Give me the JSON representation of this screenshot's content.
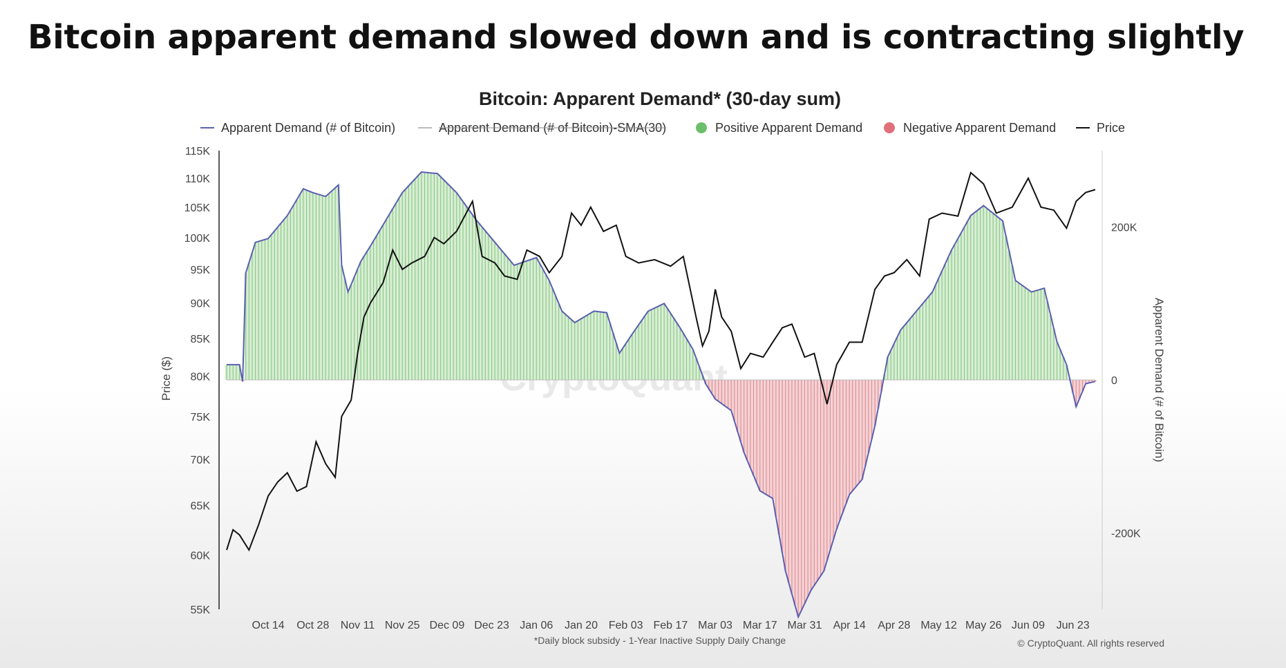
{
  "headline": "Bitcoin apparent demand slowed down and is contracting slightly",
  "chart_data": {
    "type": "line",
    "title": "Bitcoin: Apparent Demand* (30-day sum)",
    "ylabel_left": "Price ($)",
    "ylabel_right": "Apparent Demand (# of Bitcoin)",
    "footnote": "*Daily block subsidy - 1-Year Inactive Supply Daily Change",
    "copyright": "© CryptoQuant. All rights reserved",
    "watermark": "CryptoQuant",
    "legend": [
      {
        "label": "Apparent Demand (# of Bitcoin)",
        "kind": "line",
        "color": "#5a5fb0",
        "struck": false
      },
      {
        "label": "Apparent Demand (# of Bitcoin)-SMA(30)",
        "kind": "line",
        "color": "#bbbbbb",
        "struck": true
      },
      {
        "label": "Positive Apparent Demand",
        "kind": "dot",
        "color": "#6cbf6a",
        "struck": false
      },
      {
        "label": "Negative Apparent Demand",
        "kind": "dot",
        "color": "#e0707a",
        "struck": false
      },
      {
        "label": "Price",
        "kind": "line",
        "color": "#111111",
        "struck": false
      }
    ],
    "left_axis": {
      "min": 55000,
      "max": 115000,
      "scale": "log",
      "ticks": [
        55000,
        60000,
        65000,
        70000,
        75000,
        80000,
        85000,
        90000,
        95000,
        100000,
        105000,
        110000,
        115000
      ],
      "tick_labels": [
        "55K",
        "60K",
        "65K",
        "70K",
        "75K",
        "80K",
        "85K",
        "90K",
        "95K",
        "100K",
        "105K",
        "110K",
        "115K"
      ]
    },
    "right_axis": {
      "min": -300000,
      "max": 300000,
      "ticks": [
        200000,
        0,
        -200000
      ],
      "tick_labels": [
        "200K",
        "0",
        "-200K"
      ]
    },
    "x_axis": {
      "start": "2024-10-01",
      "end": "2025-06-30",
      "ticks": [
        "2024-10-14",
        "2024-10-28",
        "2024-11-11",
        "2024-11-25",
        "2024-12-09",
        "2024-12-23",
        "2025-01-06",
        "2025-01-20",
        "2025-02-03",
        "2025-02-17",
        "2025-03-03",
        "2025-03-17",
        "2025-03-31",
        "2025-04-14",
        "2025-04-28",
        "2025-05-12",
        "2025-05-26",
        "2025-06-09",
        "2025-06-23"
      ],
      "tick_labels": [
        "Oct 14",
        "Oct 28",
        "Nov 11",
        "Nov 25",
        "Dec 09",
        "Dec 23",
        "Jan 06",
        "Jan 20",
        "Feb 03",
        "Feb 17",
        "Mar 03",
        "Mar 17",
        "Mar 31",
        "Apr 14",
        "Apr 28",
        "May 12",
        "May 26",
        "Jun 09",
        "Jun 23"
      ]
    },
    "series": [
      {
        "name": "Apparent Demand (# of Bitcoin)",
        "color": "#5a5fb0",
        "points": [
          [
            "2024-10-01",
            20000
          ],
          [
            "2024-10-05",
            20000
          ],
          [
            "2024-10-06",
            -2000
          ],
          [
            "2024-10-07",
            140000
          ],
          [
            "2024-10-10",
            180000
          ],
          [
            "2024-10-14",
            185000
          ],
          [
            "2024-10-20",
            215000
          ],
          [
            "2024-10-25",
            250000
          ],
          [
            "2024-10-28",
            245000
          ],
          [
            "2024-11-01",
            240000
          ],
          [
            "2024-11-05",
            255000
          ],
          [
            "2024-11-06",
            150000
          ],
          [
            "2024-11-08",
            115000
          ],
          [
            "2024-11-12",
            155000
          ],
          [
            "2024-11-15",
            175000
          ],
          [
            "2024-11-20",
            210000
          ],
          [
            "2024-11-25",
            245000
          ],
          [
            "2024-12-01",
            272000
          ],
          [
            "2024-12-06",
            270000
          ],
          [
            "2024-12-12",
            245000
          ],
          [
            "2024-12-18",
            210000
          ],
          [
            "2024-12-24",
            180000
          ],
          [
            "2024-12-30",
            150000
          ],
          [
            "2025-01-06",
            160000
          ],
          [
            "2025-01-10",
            130000
          ],
          [
            "2025-01-14",
            90000
          ],
          [
            "2025-01-18",
            75000
          ],
          [
            "2025-01-24",
            90000
          ],
          [
            "2025-01-28",
            88000
          ],
          [
            "2025-02-01",
            35000
          ],
          [
            "2025-02-05",
            60000
          ],
          [
            "2025-02-10",
            90000
          ],
          [
            "2025-02-15",
            100000
          ],
          [
            "2025-02-20",
            68000
          ],
          [
            "2025-02-24",
            40000
          ],
          [
            "2025-02-28",
            -5000
          ],
          [
            "2025-03-03",
            -25000
          ],
          [
            "2025-03-08",
            -40000
          ],
          [
            "2025-03-12",
            -95000
          ],
          [
            "2025-03-17",
            -145000
          ],
          [
            "2025-03-21",
            -155000
          ],
          [
            "2025-03-25",
            -250000
          ],
          [
            "2025-03-29",
            -310000
          ],
          [
            "2025-04-02",
            -275000
          ],
          [
            "2025-04-06",
            -250000
          ],
          [
            "2025-04-10",
            -195000
          ],
          [
            "2025-04-14",
            -150000
          ],
          [
            "2025-04-18",
            -130000
          ],
          [
            "2025-04-22",
            -60000
          ],
          [
            "2025-04-26",
            30000
          ],
          [
            "2025-04-30",
            65000
          ],
          [
            "2025-05-05",
            90000
          ],
          [
            "2025-05-10",
            115000
          ],
          [
            "2025-05-16",
            170000
          ],
          [
            "2025-05-22",
            215000
          ],
          [
            "2025-05-26",
            228000
          ],
          [
            "2025-06-01",
            208000
          ],
          [
            "2025-06-05",
            130000
          ],
          [
            "2025-06-10",
            115000
          ],
          [
            "2025-06-14",
            120000
          ],
          [
            "2025-06-18",
            50000
          ],
          [
            "2025-06-21",
            20000
          ],
          [
            "2025-06-24",
            -35000
          ],
          [
            "2025-06-27",
            -5000
          ],
          [
            "2025-06-30",
            -2000
          ]
        ]
      },
      {
        "name": "Price",
        "color": "#111111",
        "points": [
          [
            "2024-10-01",
            60500
          ],
          [
            "2024-10-03",
            62500
          ],
          [
            "2024-10-05",
            62000
          ],
          [
            "2024-10-08",
            60500
          ],
          [
            "2024-10-11",
            63000
          ],
          [
            "2024-10-14",
            66000
          ],
          [
            "2024-10-17",
            67500
          ],
          [
            "2024-10-20",
            68500
          ],
          [
            "2024-10-23",
            66500
          ],
          [
            "2024-10-26",
            67000
          ],
          [
            "2024-10-29",
            72000
          ],
          [
            "2024-11-01",
            69500
          ],
          [
            "2024-11-04",
            68000
          ],
          [
            "2024-11-06",
            75000
          ],
          [
            "2024-11-09",
            77000
          ],
          [
            "2024-11-11",
            83000
          ],
          [
            "2024-11-13",
            88000
          ],
          [
            "2024-11-15",
            90000
          ],
          [
            "2024-11-19",
            93000
          ],
          [
            "2024-11-22",
            98000
          ],
          [
            "2024-11-25",
            95000
          ],
          [
            "2024-11-28",
            96000
          ],
          [
            "2024-12-02",
            97000
          ],
          [
            "2024-12-05",
            100000
          ],
          [
            "2024-12-08",
            99000
          ],
          [
            "2024-12-12",
            101000
          ],
          [
            "2024-12-17",
            106000
          ],
          [
            "2024-12-20",
            97000
          ],
          [
            "2024-12-24",
            96000
          ],
          [
            "2024-12-27",
            94000
          ],
          [
            "2024-12-31",
            93500
          ],
          [
            "2025-01-03",
            98000
          ],
          [
            "2025-01-07",
            97000
          ],
          [
            "2025-01-10",
            94500
          ],
          [
            "2025-01-14",
            97000
          ],
          [
            "2025-01-17",
            104000
          ],
          [
            "2025-01-20",
            102000
          ],
          [
            "2025-01-23",
            105000
          ],
          [
            "2025-01-27",
            101000
          ],
          [
            "2025-01-31",
            102000
          ],
          [
            "2025-02-03",
            97000
          ],
          [
            "2025-02-07",
            96000
          ],
          [
            "2025-02-12",
            96500
          ],
          [
            "2025-02-17",
            95500
          ],
          [
            "2025-02-21",
            97000
          ],
          [
            "2025-02-25",
            88000
          ],
          [
            "2025-02-27",
            84000
          ],
          [
            "2025-03-01",
            86000
          ],
          [
            "2025-03-03",
            92000
          ],
          [
            "2025-03-05",
            88000
          ],
          [
            "2025-03-08",
            86000
          ],
          [
            "2025-03-11",
            81000
          ],
          [
            "2025-03-14",
            83000
          ],
          [
            "2025-03-18",
            82500
          ],
          [
            "2025-03-21",
            84500
          ],
          [
            "2025-03-24",
            86500
          ],
          [
            "2025-03-27",
            87000
          ],
          [
            "2025-03-31",
            82500
          ],
          [
            "2025-04-03",
            83000
          ],
          [
            "2025-04-07",
            76500
          ],
          [
            "2025-04-10",
            81500
          ],
          [
            "2025-04-14",
            84500
          ],
          [
            "2025-04-18",
            84500
          ],
          [
            "2025-04-22",
            92000
          ],
          [
            "2025-04-25",
            94000
          ],
          [
            "2025-04-28",
            94500
          ],
          [
            "2025-05-02",
            96500
          ],
          [
            "2025-05-06",
            94000
          ],
          [
            "2025-05-09",
            103000
          ],
          [
            "2025-05-13",
            104000
          ],
          [
            "2025-05-18",
            103500
          ],
          [
            "2025-05-22",
            111000
          ],
          [
            "2025-05-26",
            109000
          ],
          [
            "2025-05-30",
            104000
          ],
          [
            "2025-06-04",
            105000
          ],
          [
            "2025-06-09",
            110000
          ],
          [
            "2025-06-13",
            105000
          ],
          [
            "2025-06-17",
            104500
          ],
          [
            "2025-06-21",
            101500
          ],
          [
            "2025-06-24",
            106000
          ],
          [
            "2025-06-27",
            107500
          ],
          [
            "2025-06-30",
            108000
          ]
        ]
      }
    ]
  }
}
